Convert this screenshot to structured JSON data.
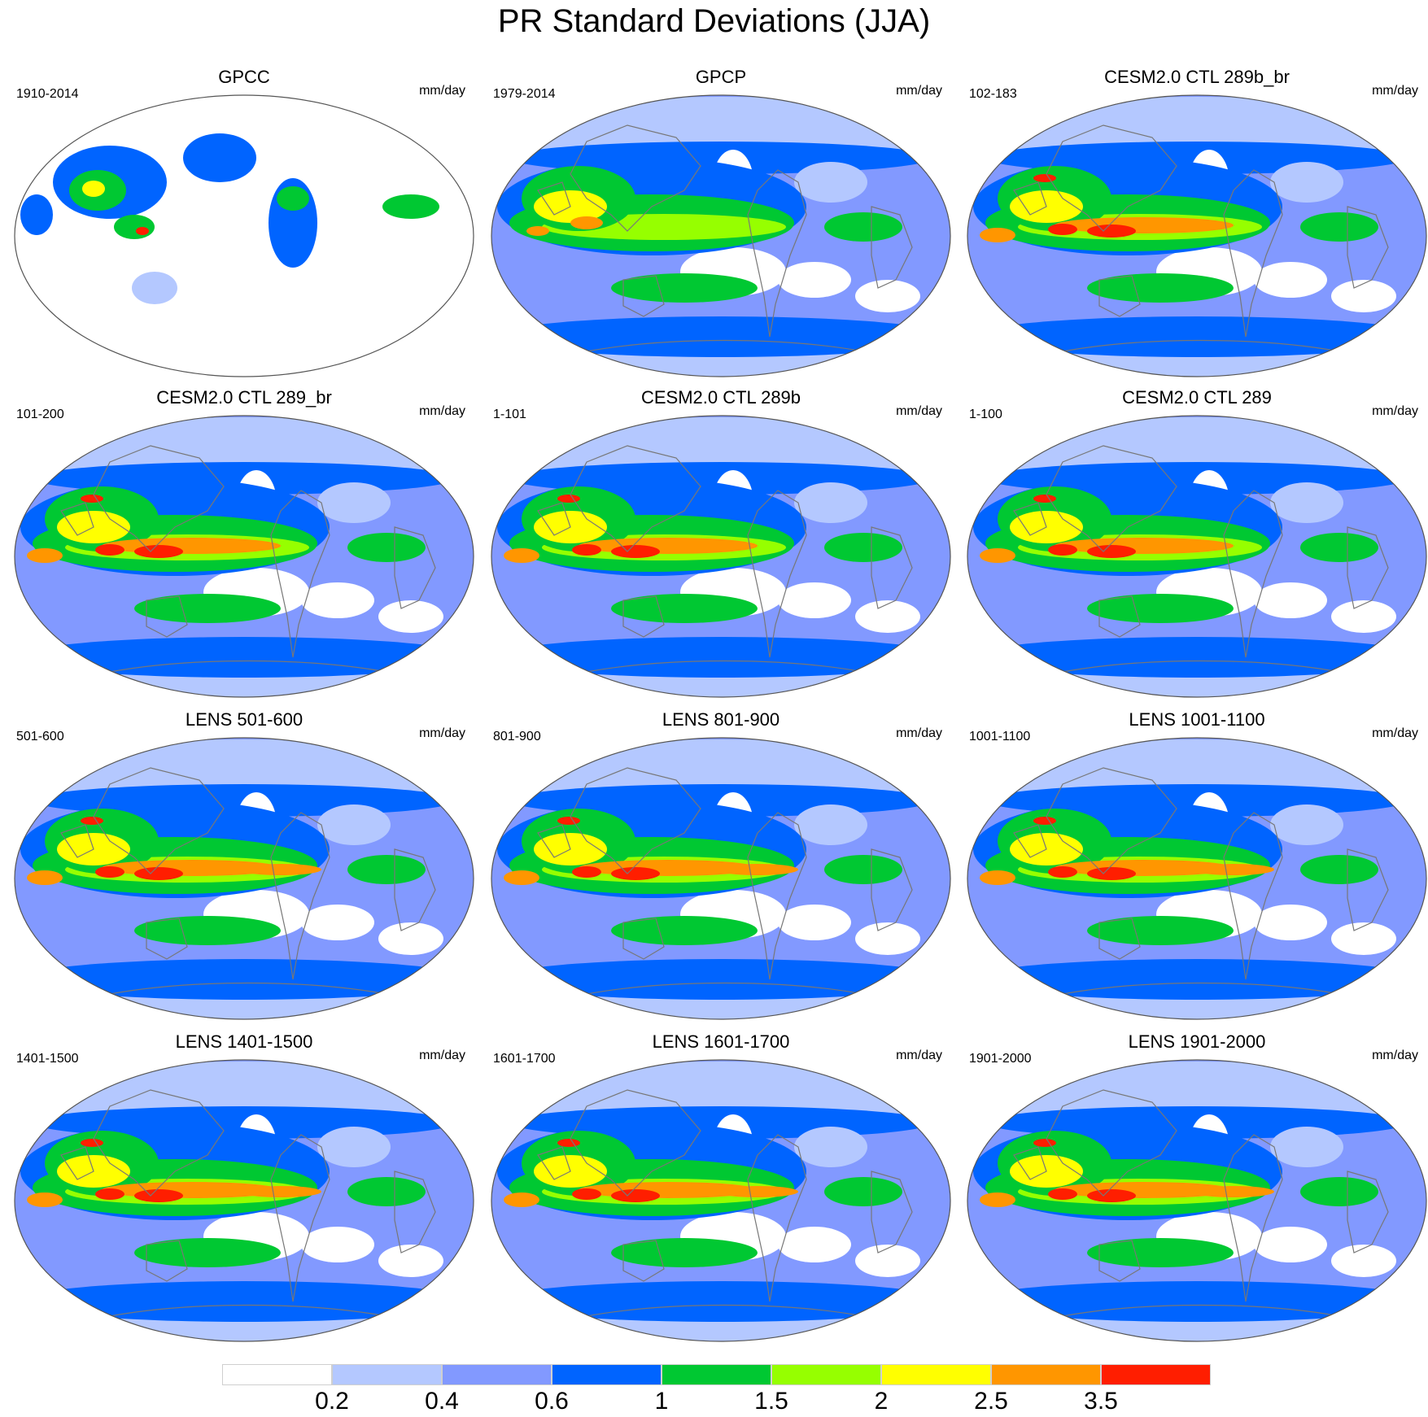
{
  "title": "PR Standard Deviations (JJA)",
  "units": "mm/day",
  "panels": [
    {
      "title": "GPCC",
      "period": "1910-2014",
      "kind": "land"
    },
    {
      "title": "GPCP",
      "period": "1979-2014",
      "kind": "obs"
    },
    {
      "title": "CESM2.0 CTL 289b_br",
      "period": "102-183",
      "kind": "model"
    },
    {
      "title": "CESM2.0 CTL 289_br",
      "period": "101-200",
      "kind": "model"
    },
    {
      "title": "CESM2.0 CTL 289b",
      "period": "1-101",
      "kind": "model"
    },
    {
      "title": "CESM2.0 CTL 289",
      "period": "1-100",
      "kind": "model"
    },
    {
      "title": "LENS 501-600",
      "period": "501-600",
      "kind": "lens"
    },
    {
      "title": "LENS 801-900",
      "period": "801-900",
      "kind": "lens"
    },
    {
      "title": "LENS 1001-1100",
      "period": "1001-1100",
      "kind": "lens"
    },
    {
      "title": "LENS 1401-1500",
      "period": "1401-1500",
      "kind": "lens"
    },
    {
      "title": "LENS 1601-1700",
      "period": "1601-1700",
      "kind": "lens"
    },
    {
      "title": "LENS 1901-2000",
      "period": "1901-2000",
      "kind": "lens"
    }
  ],
  "colorbar": {
    "labels": [
      "0.2",
      "0.4",
      "0.6",
      "1",
      "1.5",
      "2",
      "2.5",
      "3.5"
    ],
    "colors": [
      "#ffffff",
      "#b4c8ff",
      "#8299ff",
      "#0064ff",
      "#00c832",
      "#96ff00",
      "#ffff00",
      "#ff9600",
      "#ff1e00"
    ]
  }
}
